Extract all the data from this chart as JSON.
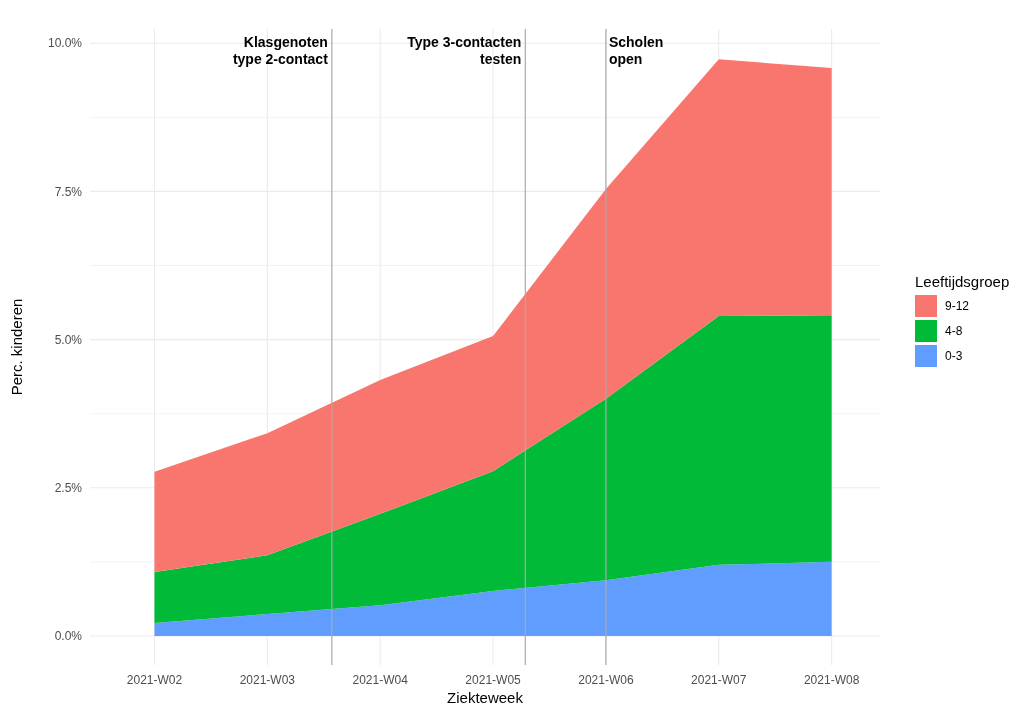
{
  "chart_data": {
    "type": "area",
    "stacked": true,
    "xlabel": "Ziekteweek",
    "ylabel": "Perc. kinderen",
    "legend_title": "Leeftijdsgroep",
    "x": [
      "2021-01-11",
      "2021-01-18",
      "2021-01-25",
      "2021-02-01",
      "2021-02-08",
      "2021-02-15",
      "2021-02-22"
    ],
    "xlim": [
      "2021-01-07",
      "2021-02-25"
    ],
    "xticks": [
      {
        "value": "2021-01-11",
        "label": "2021-W02"
      },
      {
        "value": "2021-01-18",
        "label": "2021-W03"
      },
      {
        "value": "2021-01-25",
        "label": "2021-W04"
      },
      {
        "value": "2021-02-01",
        "label": "2021-W05"
      },
      {
        "value": "2021-02-08",
        "label": "2021-W06"
      },
      {
        "value": "2021-02-15",
        "label": "2021-W07"
      },
      {
        "value": "2021-02-22",
        "label": "2021-W08"
      }
    ],
    "series": [
      {
        "name": "0-3",
        "color": "#619cff",
        "values": [
          0.22,
          0.37,
          0.52,
          0.76,
          0.94,
          1.2,
          1.25
        ]
      },
      {
        "name": "4-8",
        "color": "#00ba38",
        "values": [
          0.86,
          0.99,
          1.54,
          2.02,
          3.06,
          4.2,
          4.16
        ]
      },
      {
        "name": "9-12",
        "color": "#f8766d",
        "values": [
          1.69,
          2.06,
          2.26,
          2.28,
          3.54,
          4.33,
          4.17
        ]
      }
    ],
    "ylim": [
      -0.49,
      10.24
    ],
    "yticks": [
      {
        "value": 0,
        "label": "0.0%"
      },
      {
        "value": 1.25,
        "label": null
      },
      {
        "value": 2.5,
        "label": "2.5%"
      },
      {
        "value": 3.75,
        "label": null
      },
      {
        "value": 5,
        "label": "5.0%"
      },
      {
        "value": 6.25,
        "label": null
      },
      {
        "value": 7.5,
        "label": "7.5%"
      },
      {
        "value": 8.75,
        "label": null
      },
      {
        "value": 10,
        "label": "10.0%"
      }
    ],
    "ref_lines": [
      {
        "axis": "x",
        "value": "2021-01-22",
        "label": "Klasgenoten\ntype 2-contact",
        "color": "#aaaaaa"
      },
      {
        "axis": "x",
        "value": "2021-02-03",
        "label": "Type 3-contacten\ntesten",
        "color": "#aaaaaa"
      },
      {
        "axis": "x",
        "value": "2021-02-08",
        "label": "Scholen\nopen",
        "color": "#aaaaaa"
      }
    ],
    "grid": true,
    "legend": "right"
  }
}
